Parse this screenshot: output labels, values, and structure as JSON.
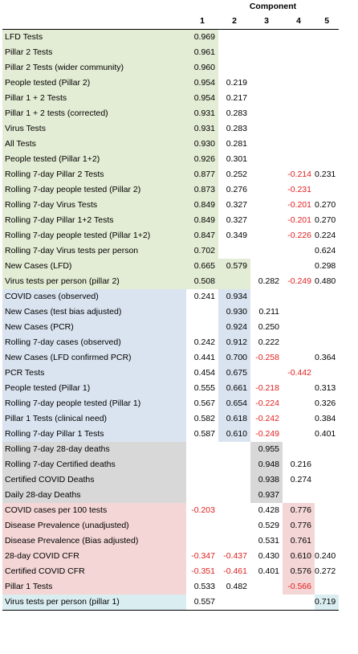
{
  "header": {
    "component_title": "Component",
    "columns": [
      "1",
      "2",
      "3",
      "4",
      "5"
    ]
  },
  "colors": {
    "green": "#e3ecd4",
    "blue": "#dae4f0",
    "gray": "#d8d8d8",
    "pink": "#f4d6d6",
    "cyan": "#daeef2",
    "negative": "#e02020"
  },
  "rows": [
    {
      "label": "LFD Tests",
      "values": [
        "0.969",
        "",
        "",
        "",
        ""
      ],
      "group": "green",
      "shade": [
        1,
        0,
        0,
        0,
        0
      ]
    },
    {
      "label": "Pillar 2 Tests",
      "values": [
        "0.961",
        "",
        "",
        "",
        ""
      ],
      "group": "green",
      "shade": [
        1,
        0,
        0,
        0,
        0
      ]
    },
    {
      "label": "Pillar 2 Tests (wider community)",
      "values": [
        "0.960",
        "",
        "",
        "",
        ""
      ],
      "group": "green",
      "shade": [
        1,
        0,
        0,
        0,
        0
      ]
    },
    {
      "label": "People tested (Pillar 2)",
      "values": [
        "0.954",
        "0.219",
        "",
        "",
        ""
      ],
      "group": "green",
      "shade": [
        1,
        0,
        0,
        0,
        0
      ]
    },
    {
      "label": "Pillar 1 + 2 Tests",
      "values": [
        "0.954",
        "0.217",
        "",
        "",
        ""
      ],
      "group": "green",
      "shade": [
        1,
        0,
        0,
        0,
        0
      ]
    },
    {
      "label": "Pillar 1 + 2 tests (corrected)",
      "values": [
        "0.931",
        "0.283",
        "",
        "",
        ""
      ],
      "group": "green",
      "shade": [
        1,
        0,
        0,
        0,
        0
      ]
    },
    {
      "label": "Virus Tests",
      "values": [
        "0.931",
        "0.283",
        "",
        "",
        ""
      ],
      "group": "green",
      "shade": [
        1,
        0,
        0,
        0,
        0
      ]
    },
    {
      "label": "All Tests",
      "values": [
        "0.930",
        "0.281",
        "",
        "",
        ""
      ],
      "group": "green",
      "shade": [
        1,
        0,
        0,
        0,
        0
      ]
    },
    {
      "label": "People tested (Pillar 1+2)",
      "values": [
        "0.926",
        "0.301",
        "",
        "",
        ""
      ],
      "group": "green",
      "shade": [
        1,
        0,
        0,
        0,
        0
      ]
    },
    {
      "label": "Rolling 7-day Pillar 2 Tests",
      "values": [
        "0.877",
        "0.252",
        "",
        "-0.214",
        "0.231"
      ],
      "group": "green",
      "shade": [
        1,
        0,
        0,
        0,
        0
      ]
    },
    {
      "label": "Rolling 7-day people tested (Pillar 2)",
      "values": [
        "0.873",
        "0.276",
        "",
        "-0.231",
        ""
      ],
      "group": "green",
      "shade": [
        1,
        0,
        0,
        0,
        0
      ]
    },
    {
      "label": "Rolling 7-day Virus Tests",
      "values": [
        "0.849",
        "0.327",
        "",
        "-0.201",
        "0.270"
      ],
      "group": "green",
      "shade": [
        1,
        0,
        0,
        0,
        0
      ]
    },
    {
      "label": "Rolling 7-day Pillar 1+2 Tests",
      "values": [
        "0.849",
        "0.327",
        "",
        "-0.201",
        "0.270"
      ],
      "group": "green",
      "shade": [
        1,
        0,
        0,
        0,
        0
      ]
    },
    {
      "label": "Rolling 7-day people tested (Pillar 1+2)",
      "values": [
        "0.847",
        "0.349",
        "",
        "-0.226",
        "0.224"
      ],
      "group": "green",
      "shade": [
        1,
        0,
        0,
        0,
        0
      ]
    },
    {
      "label": "Rolling 7-day Virus tests per person",
      "values": [
        "0.702",
        "",
        "",
        "",
        "0.624"
      ],
      "group": "green",
      "shade": [
        1,
        0,
        0,
        0,
        0
      ]
    },
    {
      "label": "New Cases (LFD)",
      "values": [
        "0.665",
        "0.579",
        "",
        "",
        "0.298"
      ],
      "group": "green",
      "shade": [
        1,
        1,
        0,
        0,
        0
      ]
    },
    {
      "label": "Virus tests per person (pillar 2)",
      "values": [
        "0.508",
        "",
        "0.282",
        "-0.249",
        "0.480"
      ],
      "group": "green",
      "shade": [
        1,
        1,
        0,
        0,
        0
      ]
    },
    {
      "label": "COVID cases (observed)",
      "values": [
        "0.241",
        "0.934",
        "",
        "",
        ""
      ],
      "group": "blue",
      "shade": [
        0,
        1,
        0,
        0,
        0
      ]
    },
    {
      "label": "New Cases (test bias adjusted)",
      "values": [
        "",
        "0.930",
        "0.211",
        "",
        ""
      ],
      "group": "blue",
      "shade": [
        0,
        1,
        0,
        0,
        0
      ]
    },
    {
      "label": "New Cases (PCR)",
      "values": [
        "",
        "0.924",
        "0.250",
        "",
        ""
      ],
      "group": "blue",
      "shade": [
        0,
        1,
        0,
        0,
        0
      ]
    },
    {
      "label": "Rolling 7-day cases (observed)",
      "values": [
        "0.242",
        "0.912",
        "0.222",
        "",
        ""
      ],
      "group": "blue",
      "shade": [
        0,
        1,
        0,
        0,
        0
      ]
    },
    {
      "label": "New Cases (LFD confirmed PCR)",
      "values": [
        "0.441",
        "0.700",
        "-0.258",
        "",
        "0.364"
      ],
      "group": "blue",
      "shade": [
        0,
        1,
        0,
        0,
        0
      ]
    },
    {
      "label": "PCR Tests",
      "values": [
        "0.454",
        "0.675",
        "",
        "-0.442",
        ""
      ],
      "group": "blue",
      "shade": [
        0,
        1,
        0,
        0,
        0
      ]
    },
    {
      "label": "People tested (Pillar 1)",
      "values": [
        "0.555",
        "0.661",
        "-0.218",
        "",
        "0.313"
      ],
      "group": "blue",
      "shade": [
        0,
        1,
        0,
        0,
        0
      ]
    },
    {
      "label": "Rolling 7-day people tested (Pillar 1)",
      "values": [
        "0.567",
        "0.654",
        "-0.224",
        "",
        "0.326"
      ],
      "group": "blue",
      "shade": [
        0,
        1,
        0,
        0,
        0
      ]
    },
    {
      "label": "Pillar 1 Tests (clinical need)",
      "values": [
        "0.582",
        "0.618",
        "-0.242",
        "",
        "0.384"
      ],
      "group": "blue",
      "shade": [
        0,
        1,
        0,
        0,
        0
      ]
    },
    {
      "label": "Rolling 7-day Pillar 1 Tests",
      "values": [
        "0.587",
        "0.610",
        "-0.249",
        "",
        "0.401"
      ],
      "group": "blue",
      "shade": [
        0,
        1,
        0,
        0,
        0
      ]
    },
    {
      "label": "Rolling 7-day 28-day deaths",
      "values": [
        "",
        "",
        "0.955",
        "",
        ""
      ],
      "group": "gray",
      "shade": [
        0,
        0,
        1,
        0,
        0
      ]
    },
    {
      "label": "Rolling 7-day Certified deaths",
      "values": [
        "",
        "",
        "0.948",
        "0.216",
        ""
      ],
      "group": "gray",
      "shade": [
        0,
        0,
        1,
        0,
        0
      ]
    },
    {
      "label": "Certified COVID Deaths",
      "values": [
        "",
        "",
        "0.938",
        "0.274",
        ""
      ],
      "group": "gray",
      "shade": [
        0,
        0,
        1,
        0,
        0
      ]
    },
    {
      "label": "Daily 28-day Deaths",
      "values": [
        "",
        "",
        "0.937",
        "",
        ""
      ],
      "group": "gray",
      "shade": [
        0,
        0,
        1,
        0,
        0
      ]
    },
    {
      "label": "COVID cases per 100 tests",
      "values": [
        "-0.203",
        "",
        "0.428",
        "0.776",
        ""
      ],
      "group": "pink",
      "shade": [
        0,
        0,
        0,
        1,
        0
      ]
    },
    {
      "label": "Disease Prevalence (unadjusted)",
      "values": [
        "",
        "",
        "0.529",
        "0.776",
        ""
      ],
      "group": "pink",
      "shade": [
        0,
        0,
        0,
        1,
        0
      ]
    },
    {
      "label": "Disease Prevalence (Bias adjusted)",
      "values": [
        "",
        "",
        "0.531",
        "0.761",
        ""
      ],
      "group": "pink",
      "shade": [
        0,
        0,
        0,
        1,
        0
      ]
    },
    {
      "label": "28-day COVID CFR",
      "values": [
        "-0.347",
        "-0.437",
        "0.430",
        "0.610",
        "0.240"
      ],
      "group": "pink",
      "shade": [
        0,
        0,
        0,
        1,
        0
      ]
    },
    {
      "label": "Certified COVID CFR",
      "values": [
        "-0.351",
        "-0.461",
        "0.401",
        "0.576",
        "0.272"
      ],
      "group": "pink",
      "shade": [
        0,
        0,
        0,
        1,
        0
      ]
    },
    {
      "label": "Pillar 1 Tests",
      "values": [
        "0.533",
        "0.482",
        "",
        "-0.566",
        ""
      ],
      "group": "pink",
      "shade": [
        0,
        0,
        0,
        1,
        0
      ]
    },
    {
      "label": "Virus tests per person (pillar 1)",
      "values": [
        "0.557",
        "",
        "",
        "",
        "0.719"
      ],
      "group": "cyan",
      "shade": [
        0,
        0,
        0,
        0,
        1
      ]
    }
  ]
}
